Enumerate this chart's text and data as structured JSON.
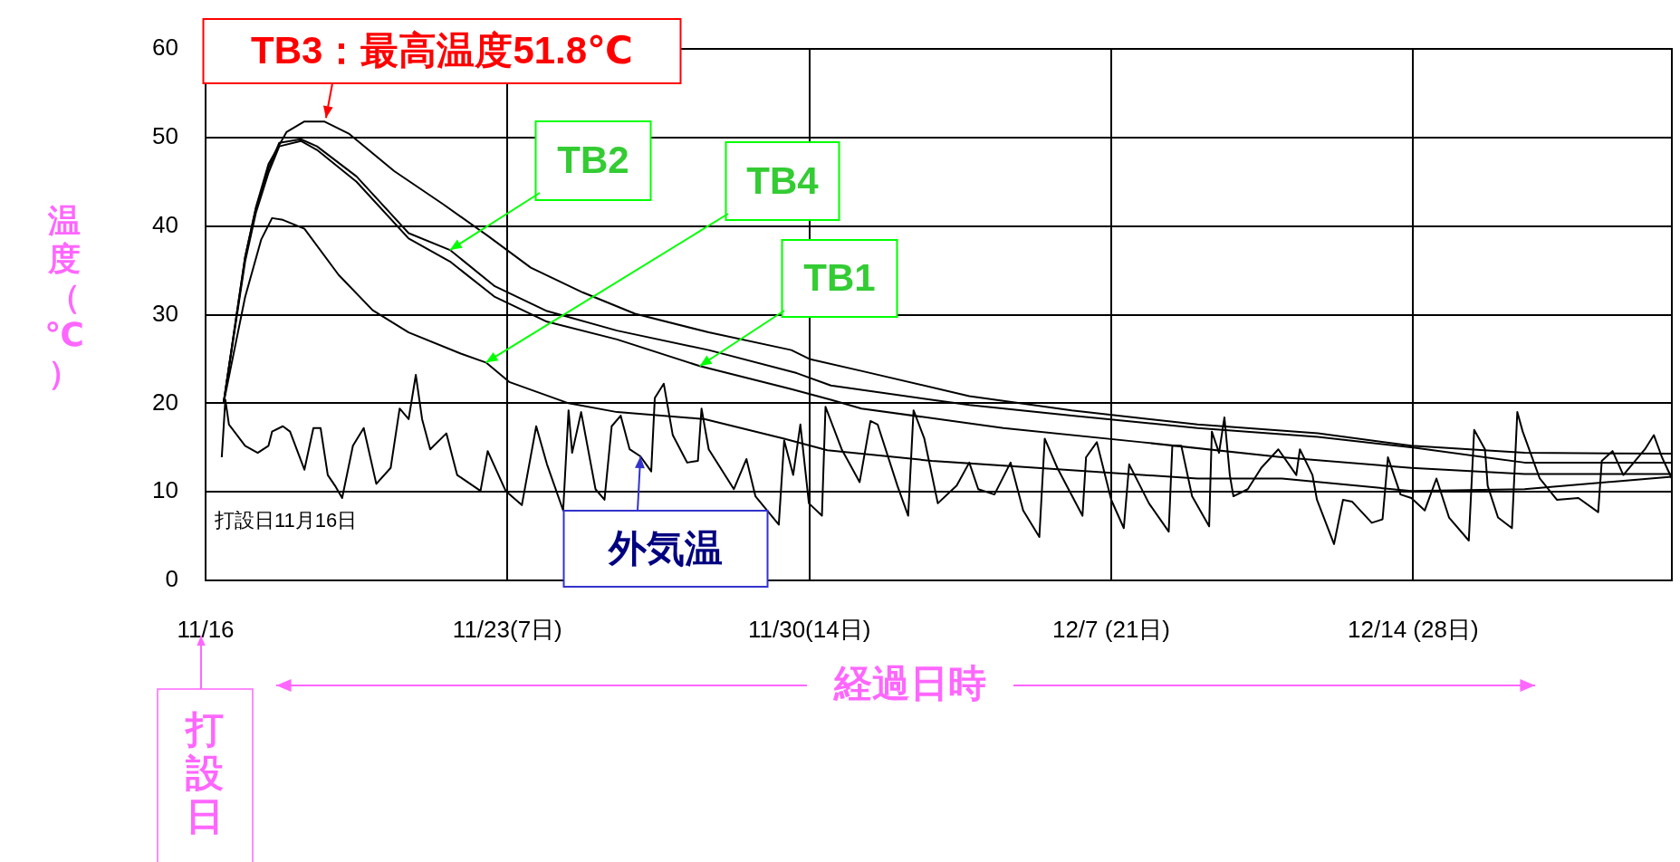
{
  "chart_data": {
    "type": "line",
    "xlabel": "経過日時",
    "ylabel": "温度（℃）",
    "xlim": [
      "--11-16",
      "--12-20"
    ],
    "xticks": [
      {
        "value": "--11-16",
        "label": "11/16"
      },
      {
        "value": "--11-23",
        "label": "11/23(7日)"
      },
      {
        "value": "--11-30",
        "label": "11/30(14日)"
      },
      {
        "value": "--12-07",
        "label": "12/7 (21日)"
      },
      {
        "value": "--12-14",
        "label": "12/14 (28日)"
      }
    ],
    "ylim": [
      0,
      60
    ],
    "yticks": [
      0,
      10,
      20,
      30,
      40,
      50,
      60
    ],
    "grid": true,
    "series": [
      {
        "color": "#000000",
        "x": [
          "--11-16T10:00",
          "--11-16T22:00",
          "--11-17T04:00",
          "--11-17T11:00",
          "--11-17T21:00",
          "--11-18T07:00",
          "--11-18T18:00",
          "--11-19T08:00",
          "--11-20T09:00",
          "--11-21T12:00",
          "--11-22T13:00",
          "--11-23T13:00",
          "--11-24T18:00",
          "--11-25T23:00",
          "--11-27T16:00",
          "--11-29T14:00",
          "--11-30T00:00",
          "--12-01T06:00",
          "--12-03T17:00",
          "--12-06T02:00",
          "--12-09T00:00",
          "--12-11T19:00",
          "--12-13T23:00",
          "--12-16T14:00",
          "--12-20T00:00"
        ],
        "values": [
          20,
          36.5,
          42.1,
          47,
          50.6,
          51.8,
          51.8,
          50.4,
          46.2,
          42.5,
          38.9,
          35.3,
          32.5,
          30.1,
          28.0,
          26.0,
          25.0,
          23.6,
          20.8,
          19.2,
          17.6,
          16.6,
          15.2,
          14.4,
          14.3
        ]
      },
      {
        "color": "#000000",
        "x": [
          "--11-16T10:00",
          "--11-16T22:00",
          "--11-17T04:00",
          "--11-17T11:00",
          "--11-17T17:00",
          "--11-18T05:00",
          "--11-18T14:00",
          "--11-19T12:00",
          "--11-20T17:00",
          "--11-21T16:00",
          "--11-22T17:00",
          "--11-23T22:00",
          "--11-25T13:00",
          "--11-27T16:00",
          "--11-29T17:00",
          "--11-30T12:00",
          "--12-03T17:00",
          "--12-06T02:00",
          "--12-09T00:00",
          "--12-11T19:00",
          "--12-14T00:00",
          "--12-16T14:00",
          "--12-20T00:00"
        ],
        "values": [
          20,
          36.5,
          42,
          46.5,
          49.4,
          49.8,
          49,
          45.6,
          39.2,
          37.3,
          33.2,
          30.4,
          28.2,
          26.0,
          23.4,
          22.0,
          19.8,
          18.6,
          17.2,
          16.2,
          15.0,
          13.3,
          13.3
        ]
      },
      {
        "color": "#000000",
        "x": [
          "--11-16T10:00",
          "--11-16T22:00",
          "--11-17T04:00",
          "--11-17T11:00",
          "--11-17T17:00",
          "--11-18T05:00",
          "--11-18T14:00",
          "--11-19T12:00",
          "--11-20T17:00",
          "--11-21T16:00",
          "--11-22T17:00",
          "--11-23T22:00",
          "--11-25T13:00",
          "--11-27T11:00",
          "--11-29T14:00",
          "--11-30T12:00",
          "--12-01T05:00",
          "--12-04T12:00",
          "--12-07T17:00",
          "--12-10T23:00",
          "--12-13T23:00",
          "--12-16T14:00",
          "--12-20T00:00"
        ],
        "values": [
          20,
          36,
          41.5,
          46,
          49,
          49.6,
          48.6,
          45.0,
          38.6,
          36.0,
          32.0,
          29.2,
          27.2,
          24.2,
          21.6,
          20.4,
          19.4,
          17.2,
          15.6,
          13.9,
          12.7,
          12.0,
          12.0
        ]
      },
      {
        "color": "#000000",
        "x": [
          "--11-16T10:00",
          "--11-16T22:00",
          "--11-17T07:00",
          "--11-17T13:00",
          "--11-17T19:00",
          "--11-18T07:00",
          "--11-19T02:00",
          "--11-19T21:00",
          "--11-20T17:00",
          "--11-21T22:00",
          "--11-22T12:00",
          "--11-23T01:00",
          "--11-24T10:00",
          "--11-25T13:00",
          "--11-27T14:00",
          "--11-29T10:00",
          "--11-30T10:00",
          "--12-02T20:00",
          "--12-05T07:00",
          "--12-09T00:00",
          "--12-10T23:00",
          "--12-13T23:00",
          "--12-16T14:00",
          "--12-20T00:00"
        ],
        "values": [
          20,
          32,
          38.5,
          40.9,
          40.7,
          39.7,
          34.5,
          30.5,
          28,
          25.6,
          24.6,
          22.4,
          20,
          19.0,
          18.2,
          16,
          14.7,
          13.5,
          12.7,
          11.5,
          11.5,
          10.1,
          10.3,
          11.7
        ]
      },
      {
        "color": "#000000",
        "x": [
          "--11-16T09:00",
          "--11-16T11:00",
          "--11-16T13:00",
          "--11-16T22:00",
          "--11-17T05:00",
          "--11-17T11:00",
          "--11-17T13:00",
          "--11-17T19:00",
          "--11-17T23:00",
          "--11-18T07:00",
          "--11-18T12:00",
          "--11-18T16:00",
          "--11-18T20:00",
          "--11-19T00:00",
          "--11-19T04:00",
          "--11-19T10:00",
          "--11-19T16:00",
          "--11-19T23:00",
          "--11-20T07:00",
          "--11-20T12:00",
          "--11-20T17:00",
          "--11-20T21:00",
          "--11-21T00:30",
          "--11-21T05:00",
          "--11-21T14:00",
          "--11-21T20:00",
          "--11-22T09:00",
          "--11-22T13:00",
          "--11-22T23:00",
          "--11-23T08:00",
          "--11-23T16:00",
          "--11-23T22:00",
          "--11-24T07:00",
          "--11-24T10:00",
          "--11-24T12:00",
          "--11-24T17:00",
          "--11-25T01:00",
          "--11-25T06:00",
          "--11-25T10:00",
          "--11-25T15:00",
          "--11-25T20:00",
          "--11-26T02:00",
          "--11-26T08:00",
          "--11-26T10:00",
          "--11-26T15:00",
          "--11-26T20:00",
          "--11-27T04:00",
          "--11-27T10:00",
          "--11-27T12:00",
          "--11-27T16:00",
          "--11-28T06:00",
          "--11-28T13:00",
          "--11-28T18:00",
          "--11-29T07:00",
          "--11-29T10:00",
          "--11-29T15:00",
          "--11-29T19:00",
          "--11-29T23:45",
          "--11-30T07:00",
          "--11-30T09:00",
          "--11-30T18:00",
          "--12-01T04:00",
          "--12-01T10:00",
          "--12-01T14:00",
          "--12-02T01:00",
          "--12-02T07:00",
          "--12-02T10:00",
          "--12-02T16:00",
          "--12-02T23:30",
          "--12-03T10:00",
          "--12-03T17:00",
          "--12-03T22:00",
          "--12-04T07:00",
          "--12-04T16:00",
          "--12-04T23:00",
          "--12-05T08:00",
          "--12-05T11:00",
          "--12-05T18:00",
          "--12-06T08:00",
          "--12-06T10:00",
          "--12-06T16:00",
          "--12-07T00:00",
          "--12-07T07:00",
          "--12-07T10:00",
          "--12-07T21:00",
          "--12-08T08:00",
          "--12-08T10:00",
          "--12-08T15:00",
          "--12-08T21:00",
          "--12-09T06:30",
          "--12-09T08:00",
          "--12-09T12:00",
          "--12-09T15:00",
          "--12-09T18:00",
          "--12-09T20:00",
          "--12-10T04:00",
          "--12-10T11:30",
          "--12-10T21:00",
          "--12-11T07:00",
          "--12-11T09:00",
          "--12-11T16:00",
          "--12-11T18:30",
          "--12-12T04:00",
          "--12-12T09:00",
          "--12-12T14:00",
          "--12-13T01:00",
          "--12-13T07:00",
          "--12-13T10:00",
          "--12-13T17:00",
          "--12-13T23:00",
          "--12-14T06:30",
          "--12-14T13:00",
          "--12-14T20:00",
          "--12-15T07:00",
          "--12-15T10:00",
          "--12-15T16:00",
          "--12-15T17:30",
          "--12-15T23:15",
          "--12-16T07:00",
          "--12-16T10:00",
          "--12-16T13:00",
          "--12-16T22:30",
          "--12-17T08:00",
          "--12-17T20:00",
          "--12-18T07:00",
          "--12-18T09:00",
          "--12-18T15:00",
          "--12-18T21:00",
          "--12-19T09:00",
          "--12-19T14:00",
          "--12-19T18:30",
          "--12-20T00:00"
        ],
        "values": [
          13.9,
          20.4,
          17.6,
          15.2,
          14.4,
          15.2,
          16.8,
          17.4,
          16.8,
          12.5,
          17.2,
          17.2,
          11.9,
          10.7,
          9.3,
          15.2,
          17.2,
          10.9,
          12.7,
          19.4,
          18.2,
          23.2,
          18.2,
          14.8,
          16.6,
          11.9,
          10.1,
          14.6,
          10.1,
          8.5,
          17.4,
          13.1,
          7.9,
          19.2,
          14.4,
          19.0,
          10.3,
          9.1,
          17.4,
          18.6,
          14.8,
          14.0,
          12.3,
          20.6,
          22.2,
          16.4,
          13.3,
          13.5,
          19.4,
          14.8,
          10.3,
          13.7,
          9.5,
          6.3,
          15.8,
          11.9,
          17.6,
          8.7,
          7.3,
          19.6,
          14.8,
          11.1,
          18.0,
          17.6,
          10.7,
          7.3,
          19.2,
          16.0,
          8.7,
          10.7,
          13.3,
          10.3,
          9.7,
          13.3,
          7.9,
          4.9,
          16.0,
          12.7,
          7.3,
          13.9,
          15.6,
          9.1,
          5.9,
          13.1,
          8.7,
          5.5,
          15.2,
          15.2,
          9.5,
          6.1,
          16.8,
          14.4,
          18.4,
          11.9,
          9.5,
          10.3,
          12.7,
          14.8,
          11.9,
          14.8,
          11.9,
          9.1,
          4.1,
          9.1,
          8.9,
          6.5,
          6.9,
          13.9,
          9.7,
          9.3,
          7.9,
          11.5,
          7.1,
          4.5,
          17.0,
          14.8,
          10.7,
          7.1,
          5.9,
          19.0,
          16.8,
          11.5,
          9.1,
          9.3,
          7.7,
          13.5,
          14.6,
          11.9,
          14.8,
          16.4,
          13.9,
          11.5
        ]
      }
    ],
    "annotations": [
      {
        "text": "TB3：最高温度51.8℃",
        "x": "--11-18T19:00",
        "y": 51.8
      },
      {
        "text": "TB2",
        "x": "--11-21T16:00",
        "y": 37.3
      },
      {
        "text": "TB4",
        "x": "--11-22T12:00",
        "y": 24.6
      },
      {
        "text": "TB1",
        "x": "--11-27T11:00",
        "y": 24.2
      },
      {
        "text": "外気温",
        "x": "--11-26T02:00",
        "y": 14.0
      },
      "打設日11月16日",
      "打設日"
    ]
  }
}
